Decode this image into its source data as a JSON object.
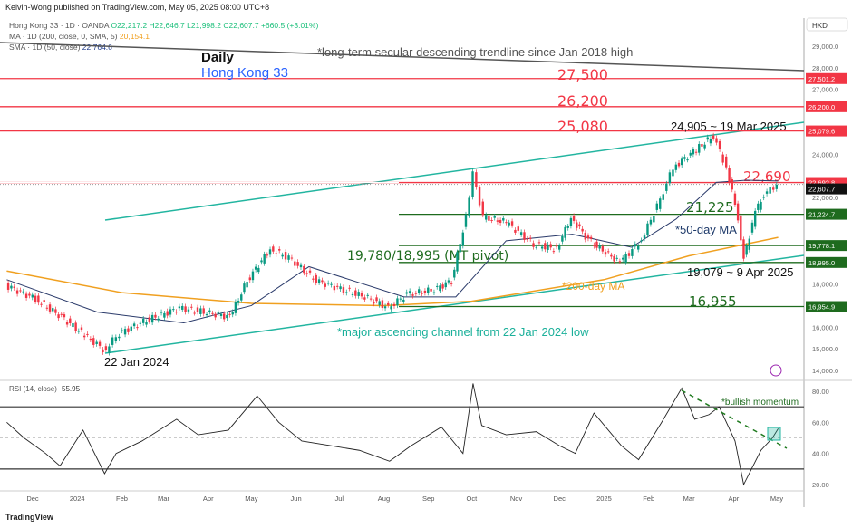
{
  "header": {
    "published": "Kelvin-Wong published on TradingView.com, May 05, 2025 08:00 UTC+8"
  },
  "legend": {
    "symbol": "Hong Kong 33 · 1D · OANDA",
    "open": "O22,217.2",
    "high": "H22,646.7",
    "low": "L21,998.2",
    "close": "C22,607.7",
    "change": "+660.5 (+3.01%)",
    "ma200_label": "MA · 1D (200, close, 0, SMA, 5)",
    "ma200_value": "20,154.1",
    "sma50_label": "SMA · 1D (50, close)",
    "sma50_value": "22,764.6"
  },
  "footer": {
    "brand": "TradingView"
  },
  "chart_data": {
    "type": "line",
    "title": "Daily",
    "subtitle": "Hong Kong 33",
    "currency": "HKD",
    "price_ticks": [
      "29,000.0",
      "28,000.0",
      "27,000.0",
      "24,000.0",
      "22,000.0",
      "18,000.0",
      "16,000.0",
      "15,000.0",
      "14,000.0"
    ],
    "price_tick_values": [
      29000,
      28000,
      27000,
      24000,
      22000,
      18000,
      16000,
      15000,
      14000
    ],
    "ylim": [
      14000,
      29000
    ],
    "x_ticks": [
      {
        "label": "Dec",
        "date": "2023-12-01"
      },
      {
        "label": "2024",
        "date": "2024-01-01"
      },
      {
        "label": "Feb",
        "date": "2024-02-01"
      },
      {
        "label": "Mar",
        "date": "2024-03-01"
      },
      {
        "label": "Apr",
        "date": "2024-04-01"
      },
      {
        "label": "May",
        "date": "2024-05-01"
      },
      {
        "label": "Jun",
        "date": "2024-06-01"
      },
      {
        "label": "Jul",
        "date": "2024-07-01"
      },
      {
        "label": "Aug",
        "date": "2024-08-01"
      },
      {
        "label": "Sep",
        "date": "2024-09-01"
      },
      {
        "label": "Oct",
        "date": "2024-10-01"
      },
      {
        "label": "Nov",
        "date": "2024-11-01"
      },
      {
        "label": "Dec",
        "date": "2024-12-01"
      },
      {
        "label": "2025",
        "date": "2025-01-01"
      },
      {
        "label": "Feb",
        "date": "2025-02-01"
      },
      {
        "label": "Mar",
        "date": "2025-03-01"
      },
      {
        "label": "Apr",
        "date": "2025-04-01"
      },
      {
        "label": "May",
        "date": "2025-05-01"
      }
    ],
    "price": {
      "name": "Hong Kong 33 close",
      "dates": [
        "2023-11-13",
        "2023-12-04",
        "2023-12-22",
        "2024-01-07",
        "2024-01-22",
        "2024-01-29",
        "2024-02-17",
        "2024-03-13",
        "2024-04-01",
        "2024-04-17",
        "2024-04-29",
        "2024-05-15",
        "2024-05-28",
        "2024-06-16",
        "2024-07-05",
        "2024-07-24",
        "2024-08-05",
        "2024-08-18",
        "2024-09-06",
        "2024-09-18",
        "2024-09-28",
        "2024-10-03",
        "2024-10-10",
        "2024-10-26",
        "2024-11-14",
        "2024-11-30",
        "2024-12-10",
        "2024-12-22",
        "2025-01-13",
        "2025-01-28",
        "2025-02-10",
        "2025-02-19",
        "2025-03-07",
        "2025-03-19",
        "2025-03-28",
        "2025-04-05",
        "2025-04-09",
        "2025-04-17",
        "2025-04-23",
        "2025-05-02"
      ],
      "values": [
        17940,
        17310,
        16470,
        15640,
        14880,
        15640,
        16260,
        16890,
        16680,
        16470,
        18150,
        19620,
        19200,
        18150,
        17730,
        17310,
        16890,
        17520,
        17730,
        18150,
        21080,
        23180,
        21080,
        20870,
        19830,
        19620,
        21080,
        20030,
        18990,
        20030,
        21920,
        23390,
        24220,
        24850,
        23390,
        21080,
        19200,
        21290,
        22130,
        22607.7
      ]
    },
    "ma200": {
      "name": "200-day MA",
      "dates": [
        "2023-11-13",
        "2024-02-01",
        "2024-05-01",
        "2024-08-01",
        "2024-10-01",
        "2025-01-01",
        "2025-03-01",
        "2025-05-02"
      ],
      "values": [
        18600,
        17600,
        17100,
        17000,
        17200,
        18200,
        19300,
        20154
      ]
    },
    "sma50": {
      "name": "50-day MA",
      "dates": [
        "2023-11-13",
        "2024-01-15",
        "2024-03-15",
        "2024-05-01",
        "2024-06-10",
        "2024-08-15",
        "2024-09-20",
        "2024-10-25",
        "2024-12-10",
        "2025-01-20",
        "2025-02-20",
        "2025-03-20",
        "2025-04-10",
        "2025-05-02"
      ],
      "values": [
        18200,
        16700,
        16200,
        17000,
        18800,
        17400,
        17400,
        20000,
        20300,
        19700,
        21000,
        22700,
        22800,
        22764.6
      ]
    },
    "levels": [
      {
        "value": 27501.2,
        "label": "27,500",
        "axis_label": "27,501.2",
        "color": "#f23645"
      },
      {
        "value": 26200.0,
        "label": "26,200",
        "axis_label": "26,200.0",
        "color": "#f23645"
      },
      {
        "value": 25079.6,
        "label": "25,080",
        "axis_label": "25,079.6",
        "color": "#f23645"
      },
      {
        "value": 22692.8,
        "label": "22,690",
        "axis_label": "22,692.8",
        "color": "#f23645"
      },
      {
        "value": 21224.7,
        "label": "21,225",
        "axis_label": "21,224.7",
        "color": "#1e6b1e"
      },
      {
        "value": 19778.1,
        "label": "19,780/18,995 (MT pivot)",
        "axis_label": "19,778.1",
        "color": "#1e6b1e"
      },
      {
        "value": 18995.0,
        "label": "",
        "axis_label": "18,995.0",
        "color": "#1e6b1e"
      },
      {
        "value": 16954.9,
        "label": "16,955",
        "axis_label": "16,954.9",
        "color": "#1e6b1e"
      }
    ],
    "last_price": {
      "value": 22607.7,
      "label": "22,607.7"
    },
    "annotations": {
      "trendline": "*long-term secular descending trendline since Jan 2018 high",
      "peak": "24,905 ~ 19 Mar 2025",
      "sma50": "*50-day MA",
      "ma200": "*200-day MA",
      "low_apr": "19,079 ~ 9 Apr 2025",
      "channel": "*major ascending channel from 22 Jan 2024 low",
      "low_jan": "22 Jan 2024"
    },
    "rsi": {
      "label": "RSI (14, close)",
      "value": "55.95",
      "ylim": [
        15,
        90
      ],
      "ticks": [
        "80.00",
        "60.00",
        "40.00",
        "20.00"
      ],
      "tick_values": [
        80,
        60,
        40,
        20
      ],
      "bands": [
        70,
        50,
        30
      ],
      "annotation": "*bullish momentum",
      "dates": [
        "2023-11-13",
        "2023-11-25",
        "2023-12-10",
        "2023-12-20",
        "2024-01-05",
        "2024-01-20",
        "2024-01-28",
        "2024-02-15",
        "2024-03-10",
        "2024-03-25",
        "2024-04-15",
        "2024-05-05",
        "2024-05-20",
        "2024-06-05",
        "2024-06-25",
        "2024-07-15",
        "2024-08-05",
        "2024-08-20",
        "2024-09-10",
        "2024-09-25",
        "2024-10-02",
        "2024-10-08",
        "2024-10-25",
        "2024-11-15",
        "2024-12-01",
        "2024-12-12",
        "2024-12-25",
        "2025-01-13",
        "2025-01-25",
        "2025-02-10",
        "2025-02-24",
        "2025-03-05",
        "2025-03-15",
        "2025-03-22",
        "2025-04-02",
        "2025-04-08",
        "2025-04-20",
        "2025-04-28",
        "2025-05-02"
      ],
      "values": [
        60,
        50,
        40,
        32,
        55,
        27,
        40,
        48,
        62,
        52,
        55,
        77,
        60,
        48,
        45,
        42,
        35,
        45,
        57,
        40,
        85,
        58,
        52,
        54,
        45,
        40,
        66,
        45,
        36,
        60,
        82,
        62,
        65,
        70,
        48,
        20,
        42,
        50,
        56
      ]
    }
  }
}
